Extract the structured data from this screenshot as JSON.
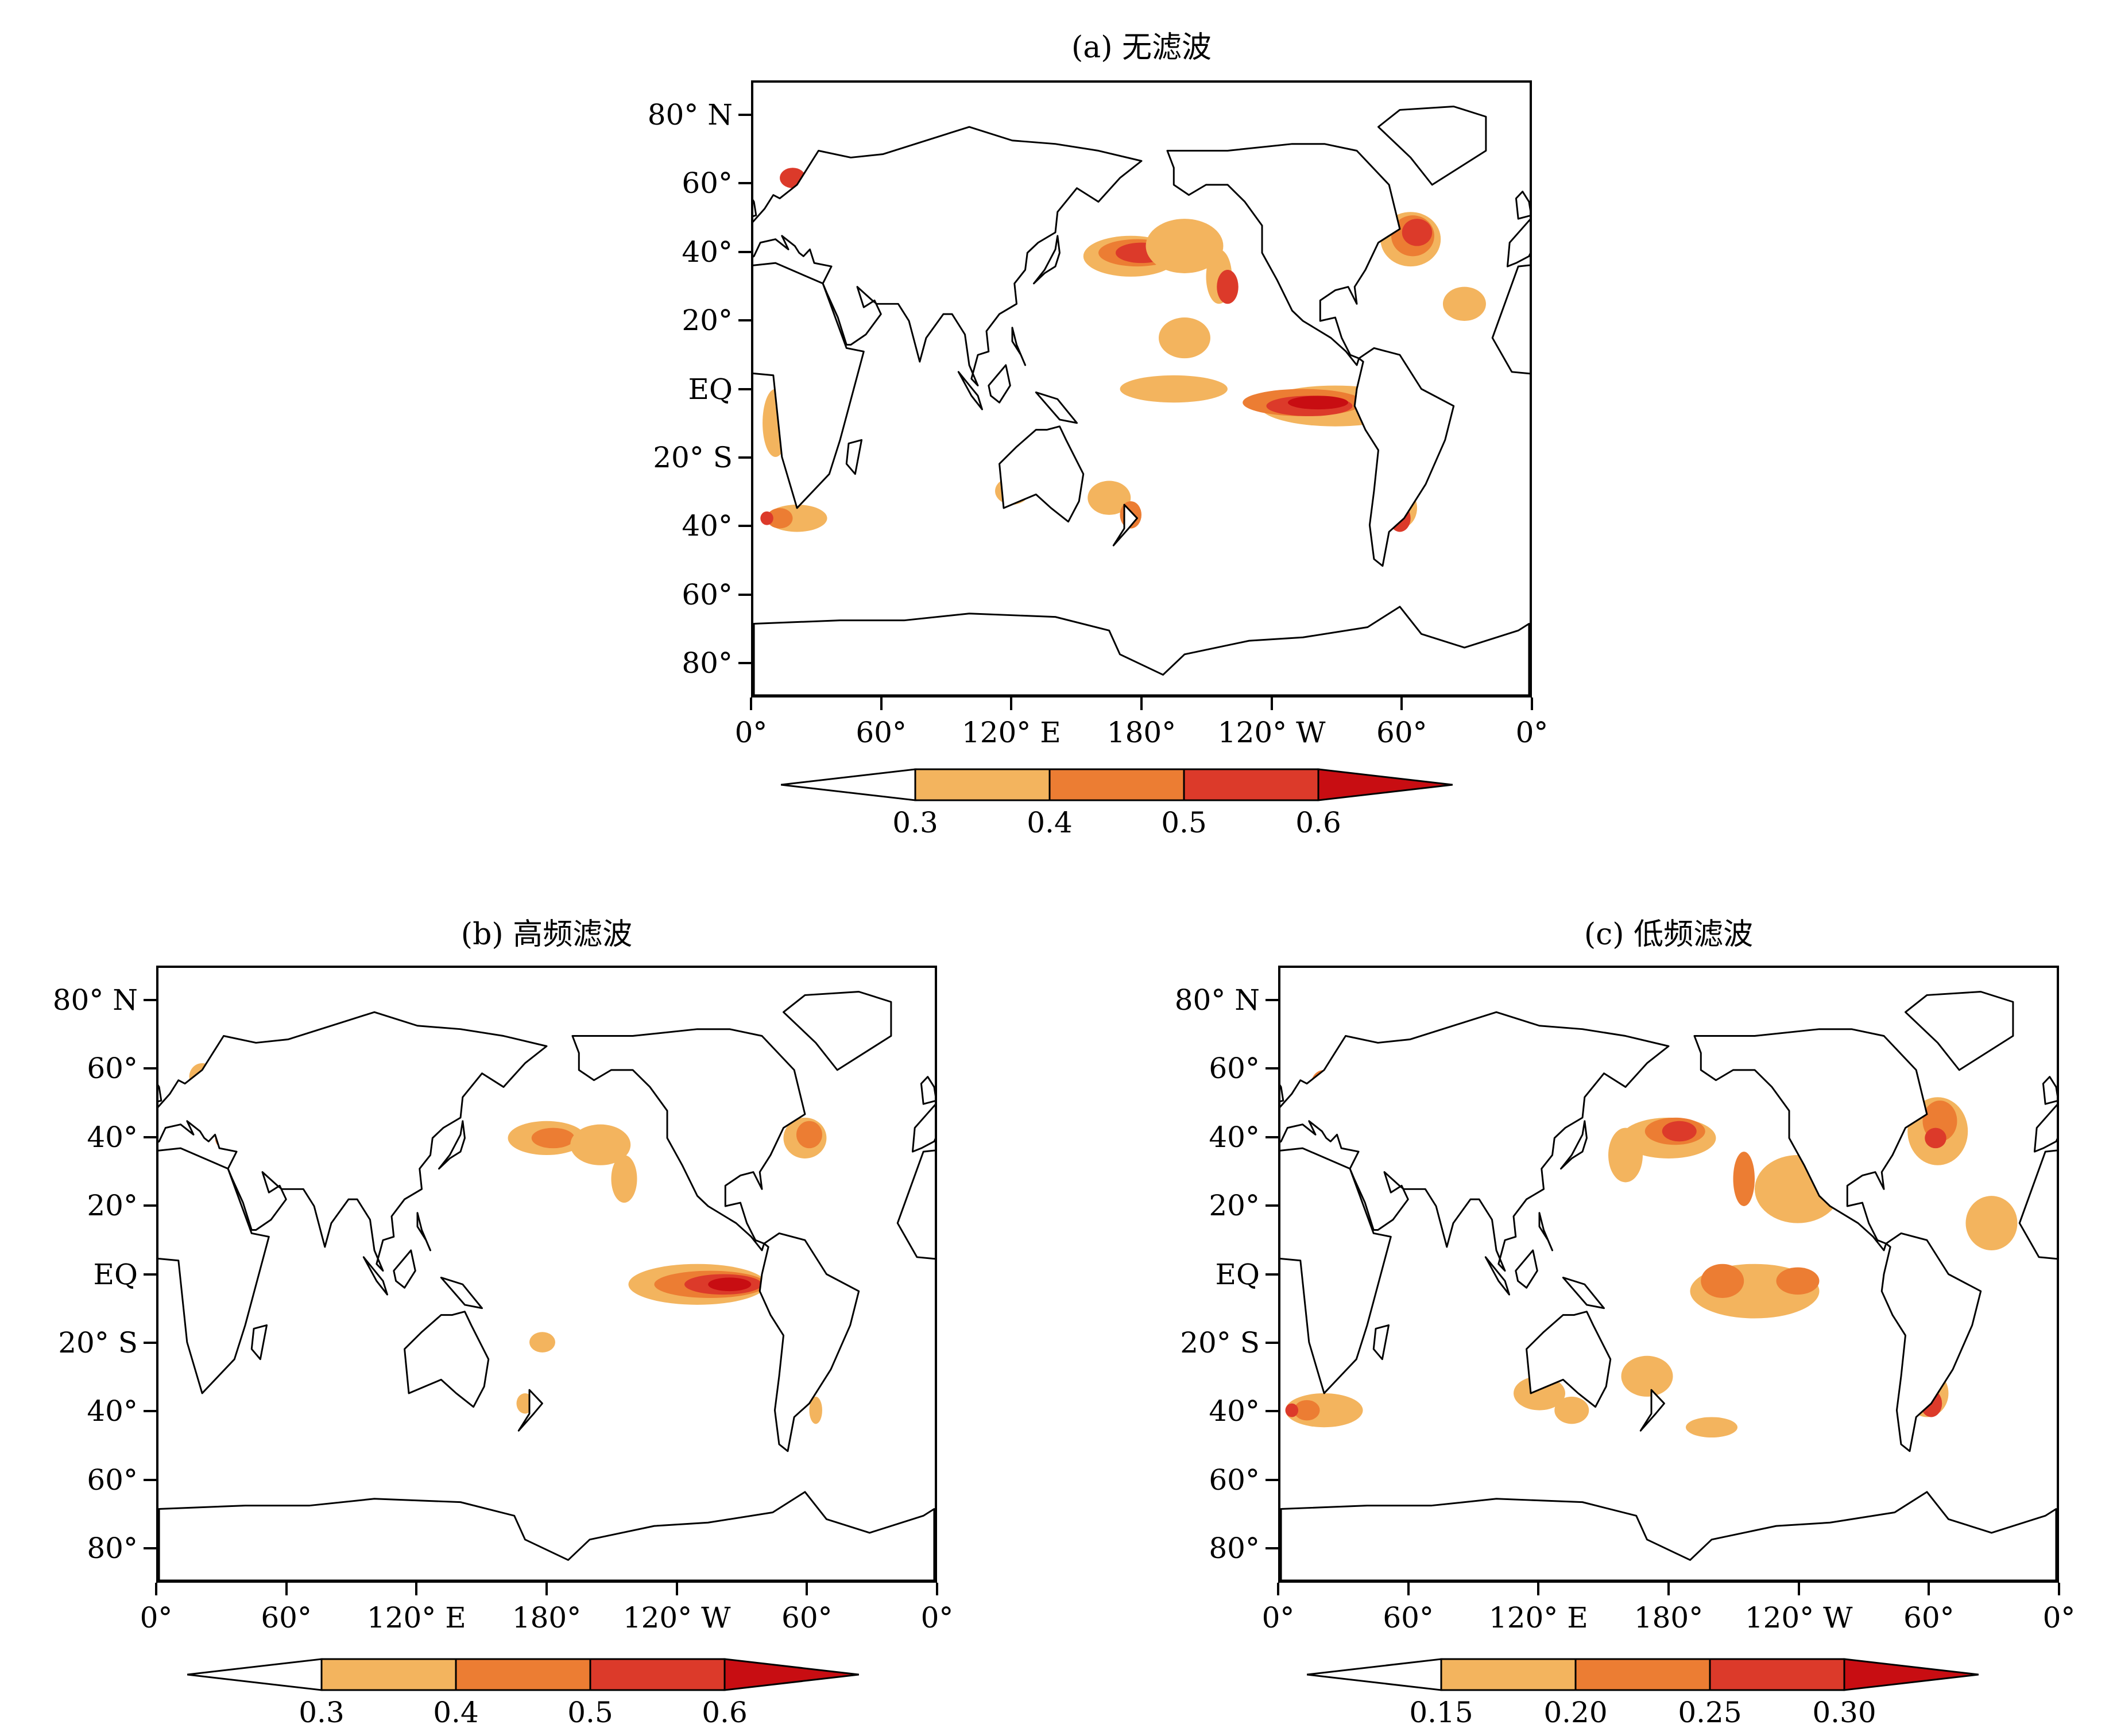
{
  "colors": {
    "level1": "#f3b45e",
    "level2": "#ec7d33",
    "level3": "#dc3a2a",
    "level4": "#c80d12",
    "land_outline": "#000000",
    "background": "#ffffff"
  },
  "shared_axes": {
    "lat_labels": [
      "80° N",
      "60°",
      "40°",
      "20°",
      "EQ",
      "20° S",
      "40°",
      "60°",
      "80°"
    ],
    "lon_labels": [
      "0°",
      "60°",
      "120° E",
      "180°",
      "120° W",
      "60°",
      "0°"
    ]
  },
  "panels": [
    {
      "id": "a",
      "title": "(a) 无滤波",
      "colorbar_ticks": [
        "0.3",
        "0.4",
        "0.5",
        "0.6"
      ]
    },
    {
      "id": "b",
      "title": "(b) 高频滤波",
      "colorbar_ticks": [
        "0.3",
        "0.4",
        "0.5",
        "0.6"
      ]
    },
    {
      "id": "c",
      "title": "(c) 低频滤波",
      "colorbar_ticks": [
        "0.15",
        "0.20",
        "0.25",
        "0.30"
      ]
    }
  ],
  "chart_data": [
    {
      "type": "heatmap",
      "title": "(a) 无滤波",
      "projection": "equirectangular",
      "lon_range": [
        0,
        360
      ],
      "lat_range": [
        -90,
        90
      ],
      "x_ticks": [
        "0°",
        "60°",
        "120° E",
        "180°",
        "120° W",
        "60°",
        "0°"
      ],
      "y_ticks": [
        "80° N",
        "60°",
        "40°",
        "20°",
        "EQ",
        "20° S",
        "40°",
        "60°",
        "80°"
      ],
      "colorbar_levels": [
        0.3,
        0.4,
        0.5,
        0.6
      ],
      "colorbar_extend": "both"
    },
    {
      "type": "heatmap",
      "title": "(b) 高频滤波",
      "projection": "equirectangular",
      "lon_range": [
        0,
        360
      ],
      "lat_range": [
        -90,
        90
      ],
      "x_ticks": [
        "0°",
        "60°",
        "120° E",
        "180°",
        "120° W",
        "60°",
        "0°"
      ],
      "y_ticks": [
        "80° N",
        "60°",
        "40°",
        "20°",
        "EQ",
        "20° S",
        "40°",
        "60°",
        "80°"
      ],
      "colorbar_levels": [
        0.3,
        0.4,
        0.5,
        0.6
      ],
      "colorbar_extend": "both"
    },
    {
      "type": "heatmap",
      "title": "(c) 低频滤波",
      "projection": "equirectangular",
      "lon_range": [
        0,
        360
      ],
      "lat_range": [
        -90,
        90
      ],
      "x_ticks": [
        "0°",
        "60°",
        "120° E",
        "180°",
        "120° W",
        "60°",
        "0°"
      ],
      "y_ticks": [
        "80° N",
        "60°",
        "40°",
        "20°",
        "EQ",
        "20° S",
        "40°",
        "60°",
        "80°"
      ],
      "colorbar_levels": [
        0.15,
        0.2,
        0.25,
        0.3
      ],
      "colorbar_extend": "both"
    }
  ]
}
